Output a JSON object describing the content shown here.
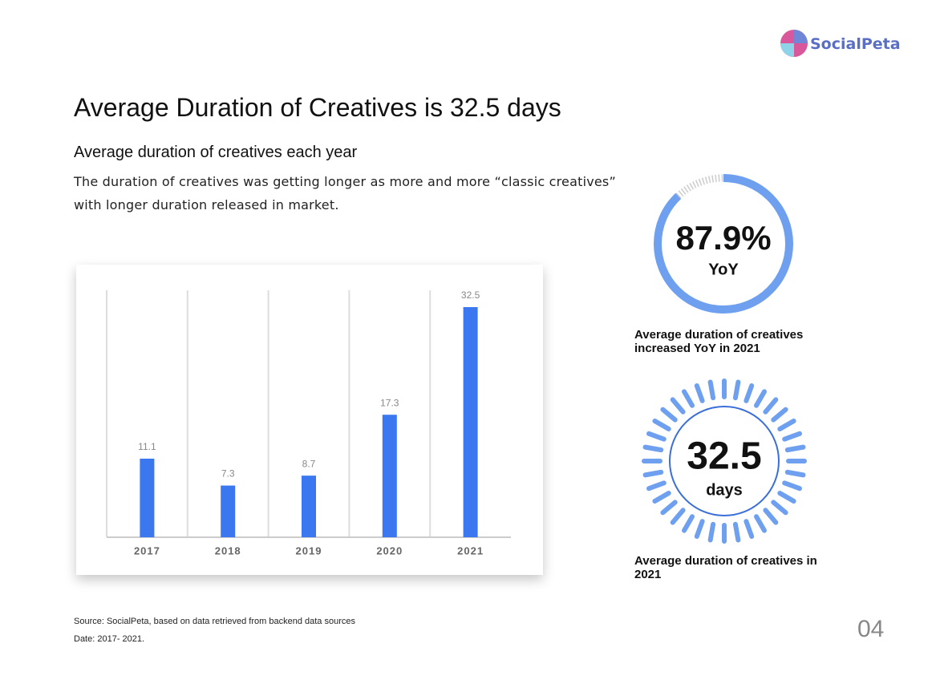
{
  "logo": "SocialPeta",
  "title": "Average Duration of Creatives is 32.5 days",
  "subtitle": "Average duration of creatives each year",
  "description": "The duration of creatives was getting longer as more and more “classic creatives” with longer duration released in market.",
  "chart_data": {
    "type": "bar",
    "categories": [
      "2017",
      "2018",
      "2019",
      "2020",
      "2021"
    ],
    "values": [
      11.1,
      7.3,
      8.7,
      17.3,
      32.5
    ],
    "color": "#3b78f0"
  },
  "stats": [
    {
      "value": 87.9,
      "value_label": "87.9%",
      "unit": "YoY",
      "caption": "Average duration of creatives increased YoY in 2021"
    },
    {
      "value": 32.5,
      "unit": "days",
      "caption": "Average duration of creatives in 2021"
    }
  ],
  "source": "Source: SocialPeta, based on data retrieved from backend data sources",
  "date": "Date: 2017- 2021.",
  "page_number": "04"
}
